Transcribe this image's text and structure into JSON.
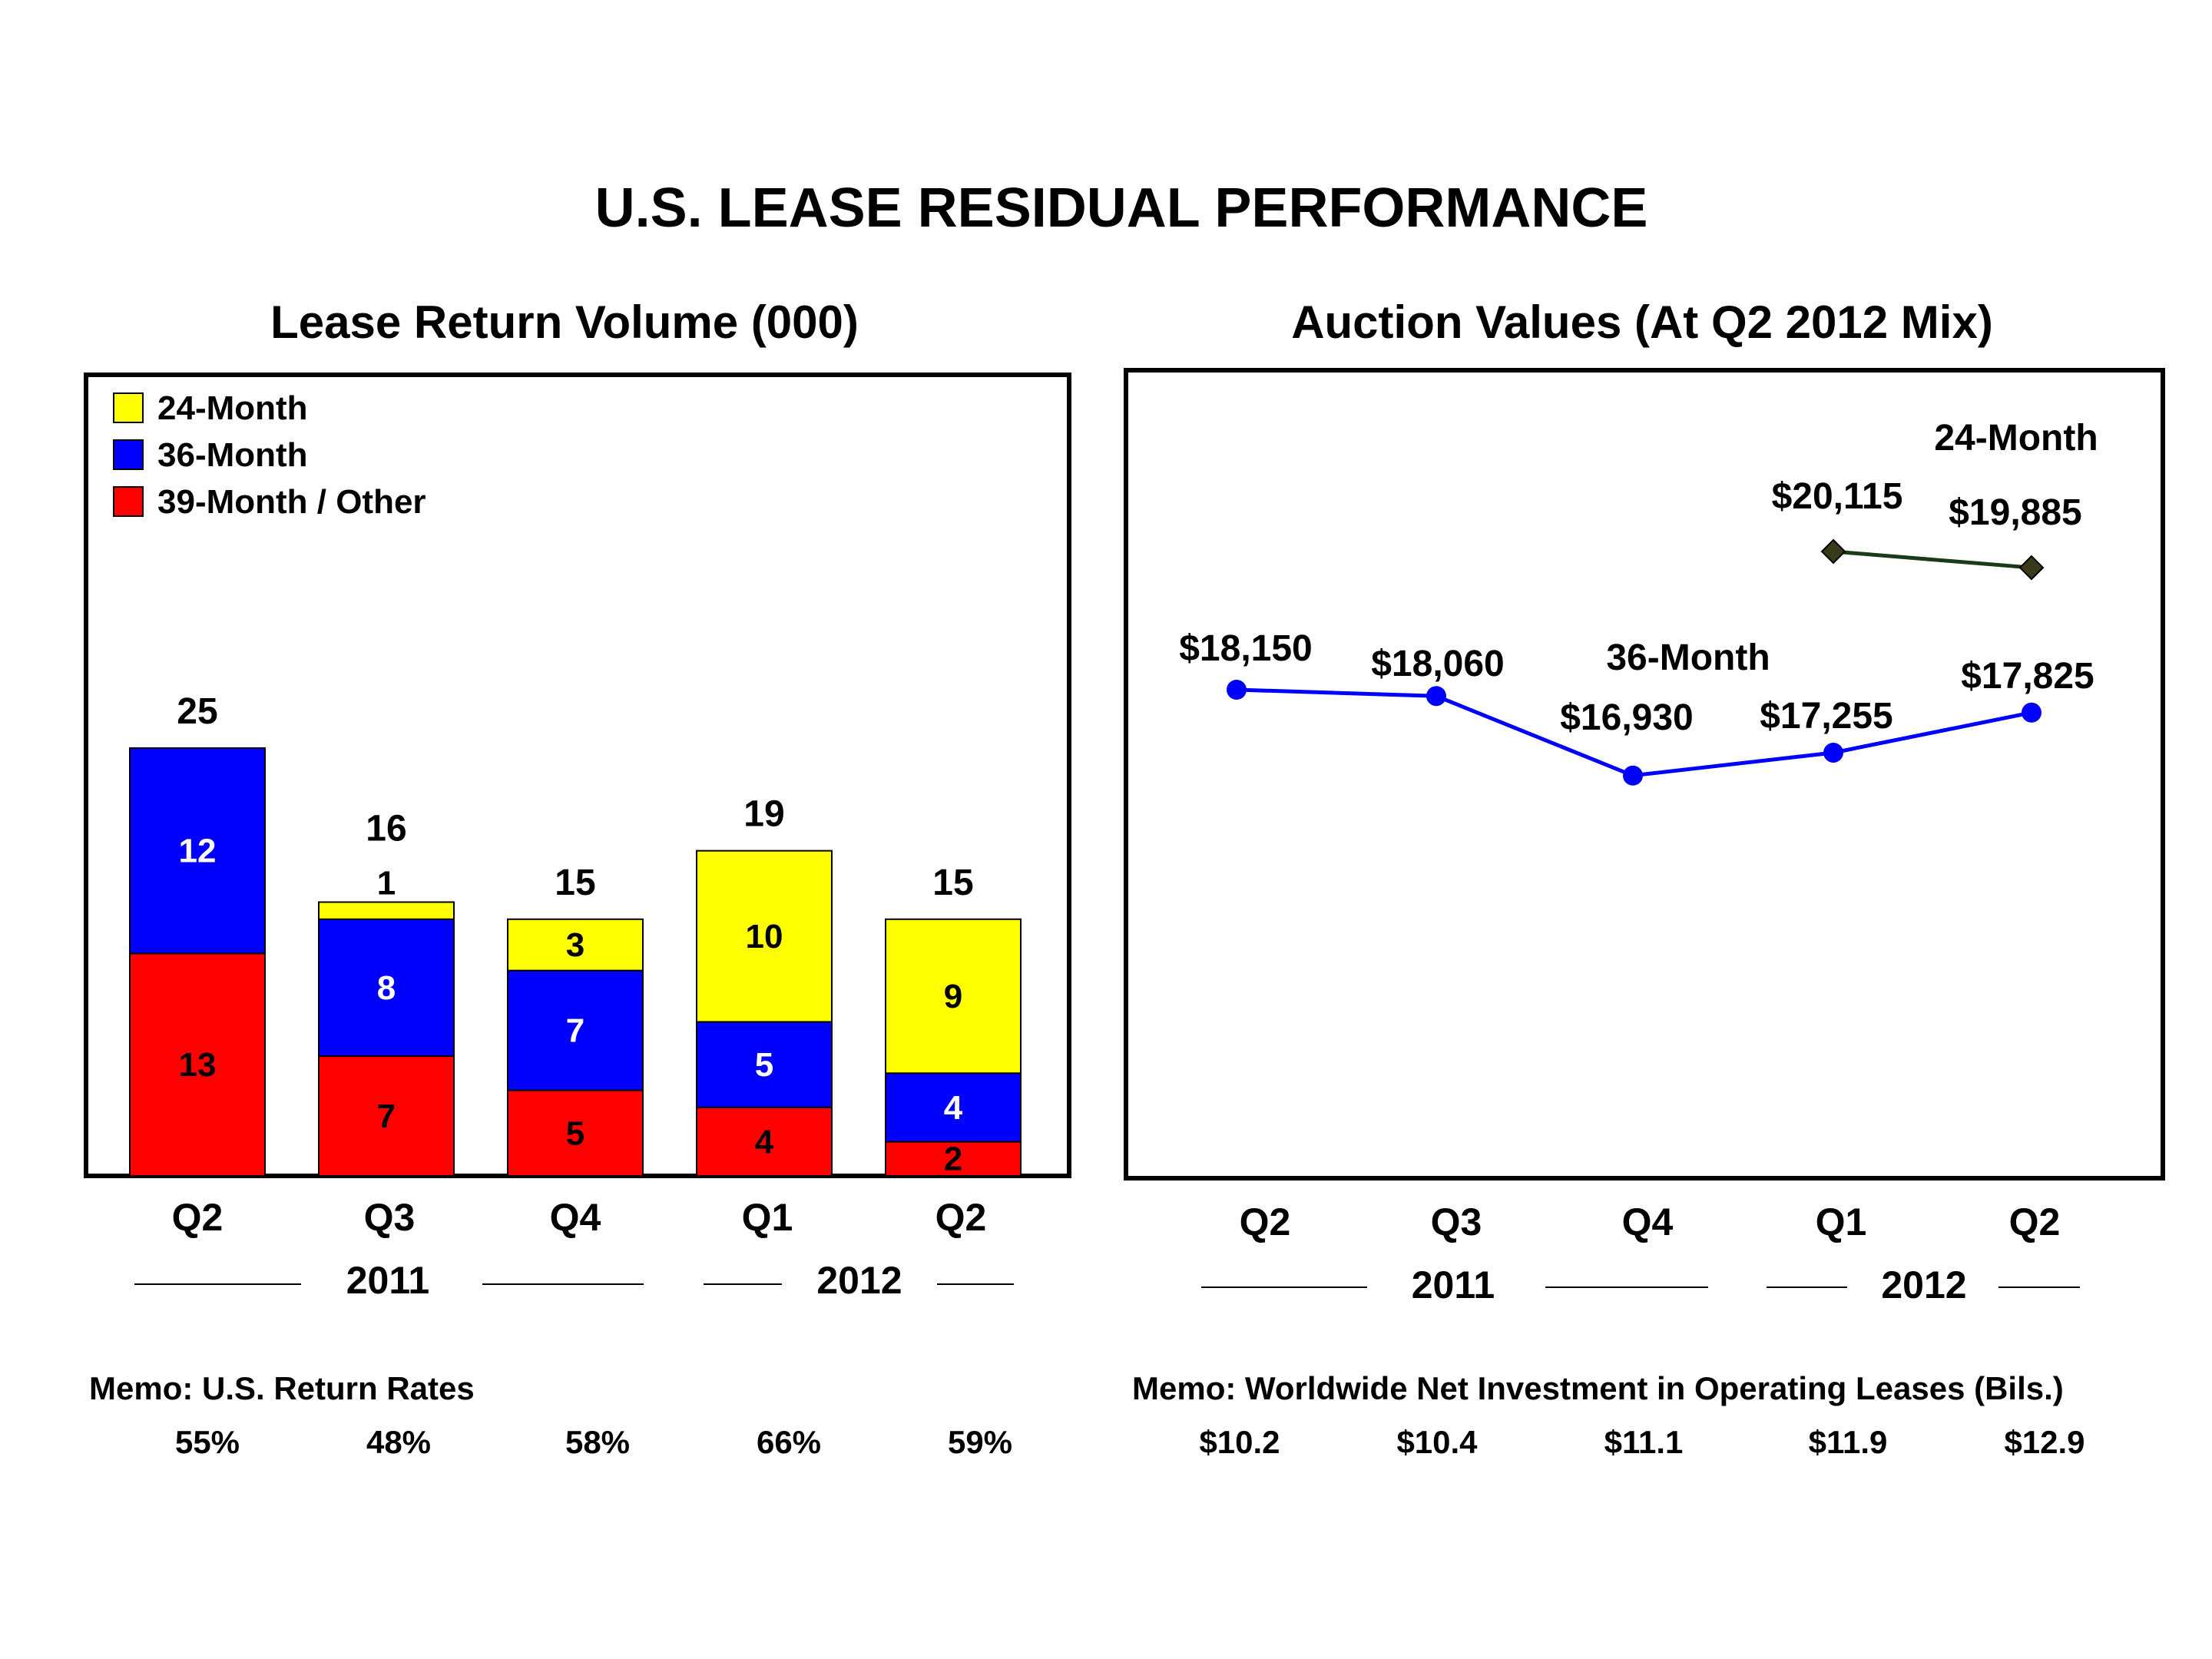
{
  "title": "U.S. LEASE RESIDUAL PERFORMANCE",
  "chart_data": [
    {
      "type": "bar",
      "stacked": true,
      "title": "Lease Return Volume (000)",
      "categories": [
        "Q2",
        "Q3",
        "Q4",
        "Q1",
        "Q2"
      ],
      "year_groups": [
        "2011",
        "2012"
      ],
      "legend_position": "top-left",
      "ylim": [
        0,
        25
      ],
      "series": [
        {
          "name": "39-Month / Other",
          "color": "#ff0000",
          "label_color": "#000000",
          "values": [
            13,
            7,
            5,
            4,
            2
          ]
        },
        {
          "name": "36-Month",
          "color": "#0000ff",
          "label_color": "#ffffff",
          "values": [
            12,
            8,
            7,
            5,
            4
          ]
        },
        {
          "name": "24-Month",
          "color": "#ffff00",
          "label_color": "#000000",
          "values": [
            0,
            1,
            3,
            10,
            9
          ]
        }
      ],
      "totals": [
        25,
        16,
        15,
        19,
        15
      ],
      "memo_label": "Memo:  U.S. Return Rates",
      "memo_values": [
        "55%",
        "48%",
        "58%",
        "66%",
        "59%"
      ]
    },
    {
      "type": "line",
      "title": "Auction Values (At Q2 2012 Mix)",
      "categories": [
        "Q2",
        "Q3",
        "Q4",
        "Q1",
        "Q2"
      ],
      "year_groups": [
        "2011",
        "2012"
      ],
      "grid": false,
      "series": [
        {
          "name": "36-Month",
          "color": "#0000ff",
          "marker": "circle",
          "values": [
            18150,
            18060,
            16930,
            17255,
            17825
          ],
          "labels": [
            "$18,150",
            "$18,060",
            "$16,930",
            "$17,255",
            "$17,825"
          ]
        },
        {
          "name": "24-Month",
          "color": "#3a3a1a",
          "line_color": "#1a3a1a",
          "marker": "diamond",
          "values": [
            null,
            null,
            null,
            20115,
            19885
          ],
          "labels": [
            "",
            "",
            "",
            "$20,115",
            "$19,885"
          ]
        }
      ],
      "memo_label": "Memo:  Worldwide Net Investment in Operating Leases (Bils.)",
      "memo_values": [
        "$10.2",
        "$10.4",
        "$11.1",
        "$11.9",
        "$12.9"
      ]
    }
  ]
}
